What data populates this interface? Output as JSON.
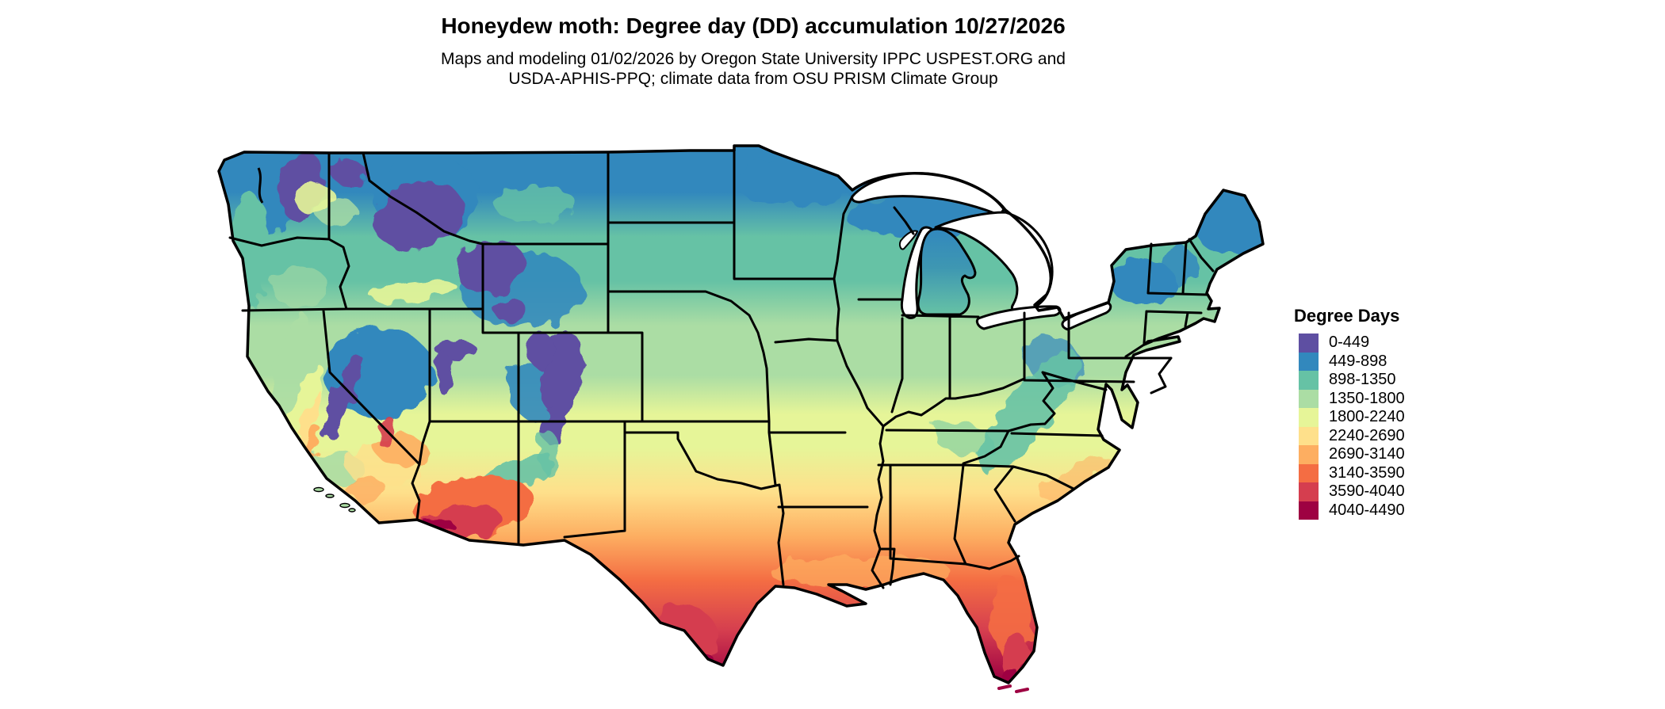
{
  "header": {
    "title": "Honeydew moth: Degree day (DD) accumulation 10/27/2026",
    "subtitle_line1": "Maps and modeling 01/02/2026 by Oregon State University IPPC USPEST.ORG and",
    "subtitle_line2": "USDA-APHIS-PPQ; climate data from OSU PRISM Climate Group"
  },
  "legend": {
    "title": "Degree Days",
    "items": [
      {
        "label": "0-449",
        "color": "#5e4fa2"
      },
      {
        "label": "449-898",
        "color": "#3288bd"
      },
      {
        "label": "898-1350",
        "color": "#66c2a5"
      },
      {
        "label": "1350-1800",
        "color": "#abdda4"
      },
      {
        "label": "1800-2240",
        "color": "#e6f598"
      },
      {
        "label": "2240-2690",
        "color": "#fee08b"
      },
      {
        "label": "2690-3140",
        "color": "#fdae61"
      },
      {
        "label": "3140-3590",
        "color": "#f46d43"
      },
      {
        "label": "3590-4040",
        "color": "#d53e4f"
      },
      {
        "label": "4040-4490",
        "color": "#9e0142"
      }
    ]
  },
  "map": {
    "region": "contiguous United States",
    "background_color": "#ffffff",
    "border_color": "#000000"
  }
}
